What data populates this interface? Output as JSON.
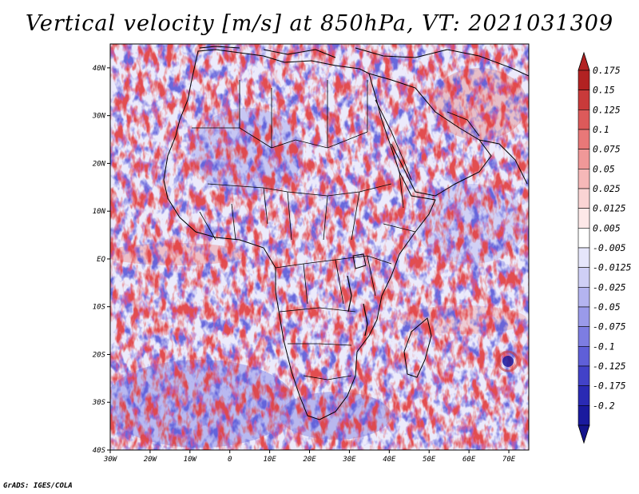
{
  "title": "Vertical velocity [m/s] at 850hPa, VT: 2021031309",
  "credit": "GrADS: IGES/COLA",
  "map": {
    "region": "Africa and western Indian Ocean",
    "field": "Vertical velocity",
    "units": "m/s",
    "level": "850hPa",
    "valid_time": "2021031309",
    "lon_range": [
      -30,
      75
    ],
    "lat_range": [
      -40,
      45
    ],
    "lat_labels": [
      {
        "value": 40,
        "label": "40N"
      },
      {
        "value": 30,
        "label": "30N"
      },
      {
        "value": 20,
        "label": "20N"
      },
      {
        "value": 10,
        "label": "10N"
      },
      {
        "value": 0,
        "label": "EQ"
      },
      {
        "value": -10,
        "label": "10S"
      },
      {
        "value": -20,
        "label": "20S"
      },
      {
        "value": -30,
        "label": "30S"
      },
      {
        "value": -40,
        "label": "40S"
      }
    ],
    "lon_labels": [
      {
        "value": -30,
        "label": "30W"
      },
      {
        "value": -20,
        "label": "20W"
      },
      {
        "value": -10,
        "label": "10W"
      },
      {
        "value": 0,
        "label": "0"
      },
      {
        "value": 10,
        "label": "10E"
      },
      {
        "value": 20,
        "label": "20E"
      },
      {
        "value": 30,
        "label": "30E"
      },
      {
        "value": 40,
        "label": "40E"
      },
      {
        "value": 50,
        "label": "50E"
      },
      {
        "value": 60,
        "label": "60E"
      },
      {
        "value": 70,
        "label": "70E"
      }
    ]
  },
  "colorbar": {
    "levels": [
      {
        "label": "0.175",
        "color": "#b22222"
      },
      {
        "label": "0.15",
        "color": "#c93a3a"
      },
      {
        "label": "0.125",
        "color": "#dc5a5a"
      },
      {
        "label": "0.1",
        "color": "#e87878"
      },
      {
        "label": "0.075",
        "color": "#f09898"
      },
      {
        "label": "0.05",
        "color": "#f6b8b8"
      },
      {
        "label": "0.025",
        "color": "#fad4d4"
      },
      {
        "label": "0.0125",
        "color": "#fde8e8"
      },
      {
        "label": "0.005",
        "color": "#ffffff"
      },
      {
        "label": "-0.005",
        "color": "#e6e6fb"
      },
      {
        "label": "-0.0125",
        "color": "#cfcff6"
      },
      {
        "label": "-0.025",
        "color": "#b4b4f0"
      },
      {
        "label": "-0.05",
        "color": "#9a9aea"
      },
      {
        "label": "-0.075",
        "color": "#7d7de2"
      },
      {
        "label": "-0.1",
        "color": "#5f5fd8"
      },
      {
        "label": "-0.125",
        "color": "#4242c8"
      },
      {
        "label": "-0.175",
        "color": "#2a2ab4"
      },
      {
        "label": "-0.2",
        "color": "#1a1a9e"
      }
    ],
    "top_triangle_color": "#b22222",
    "bottom_triangle_color": "#14148c"
  },
  "colors": {
    "background": "#ffffff",
    "ocean_base": "#ecebfb",
    "land_base": "#f3eef4",
    "border": "#000000"
  }
}
